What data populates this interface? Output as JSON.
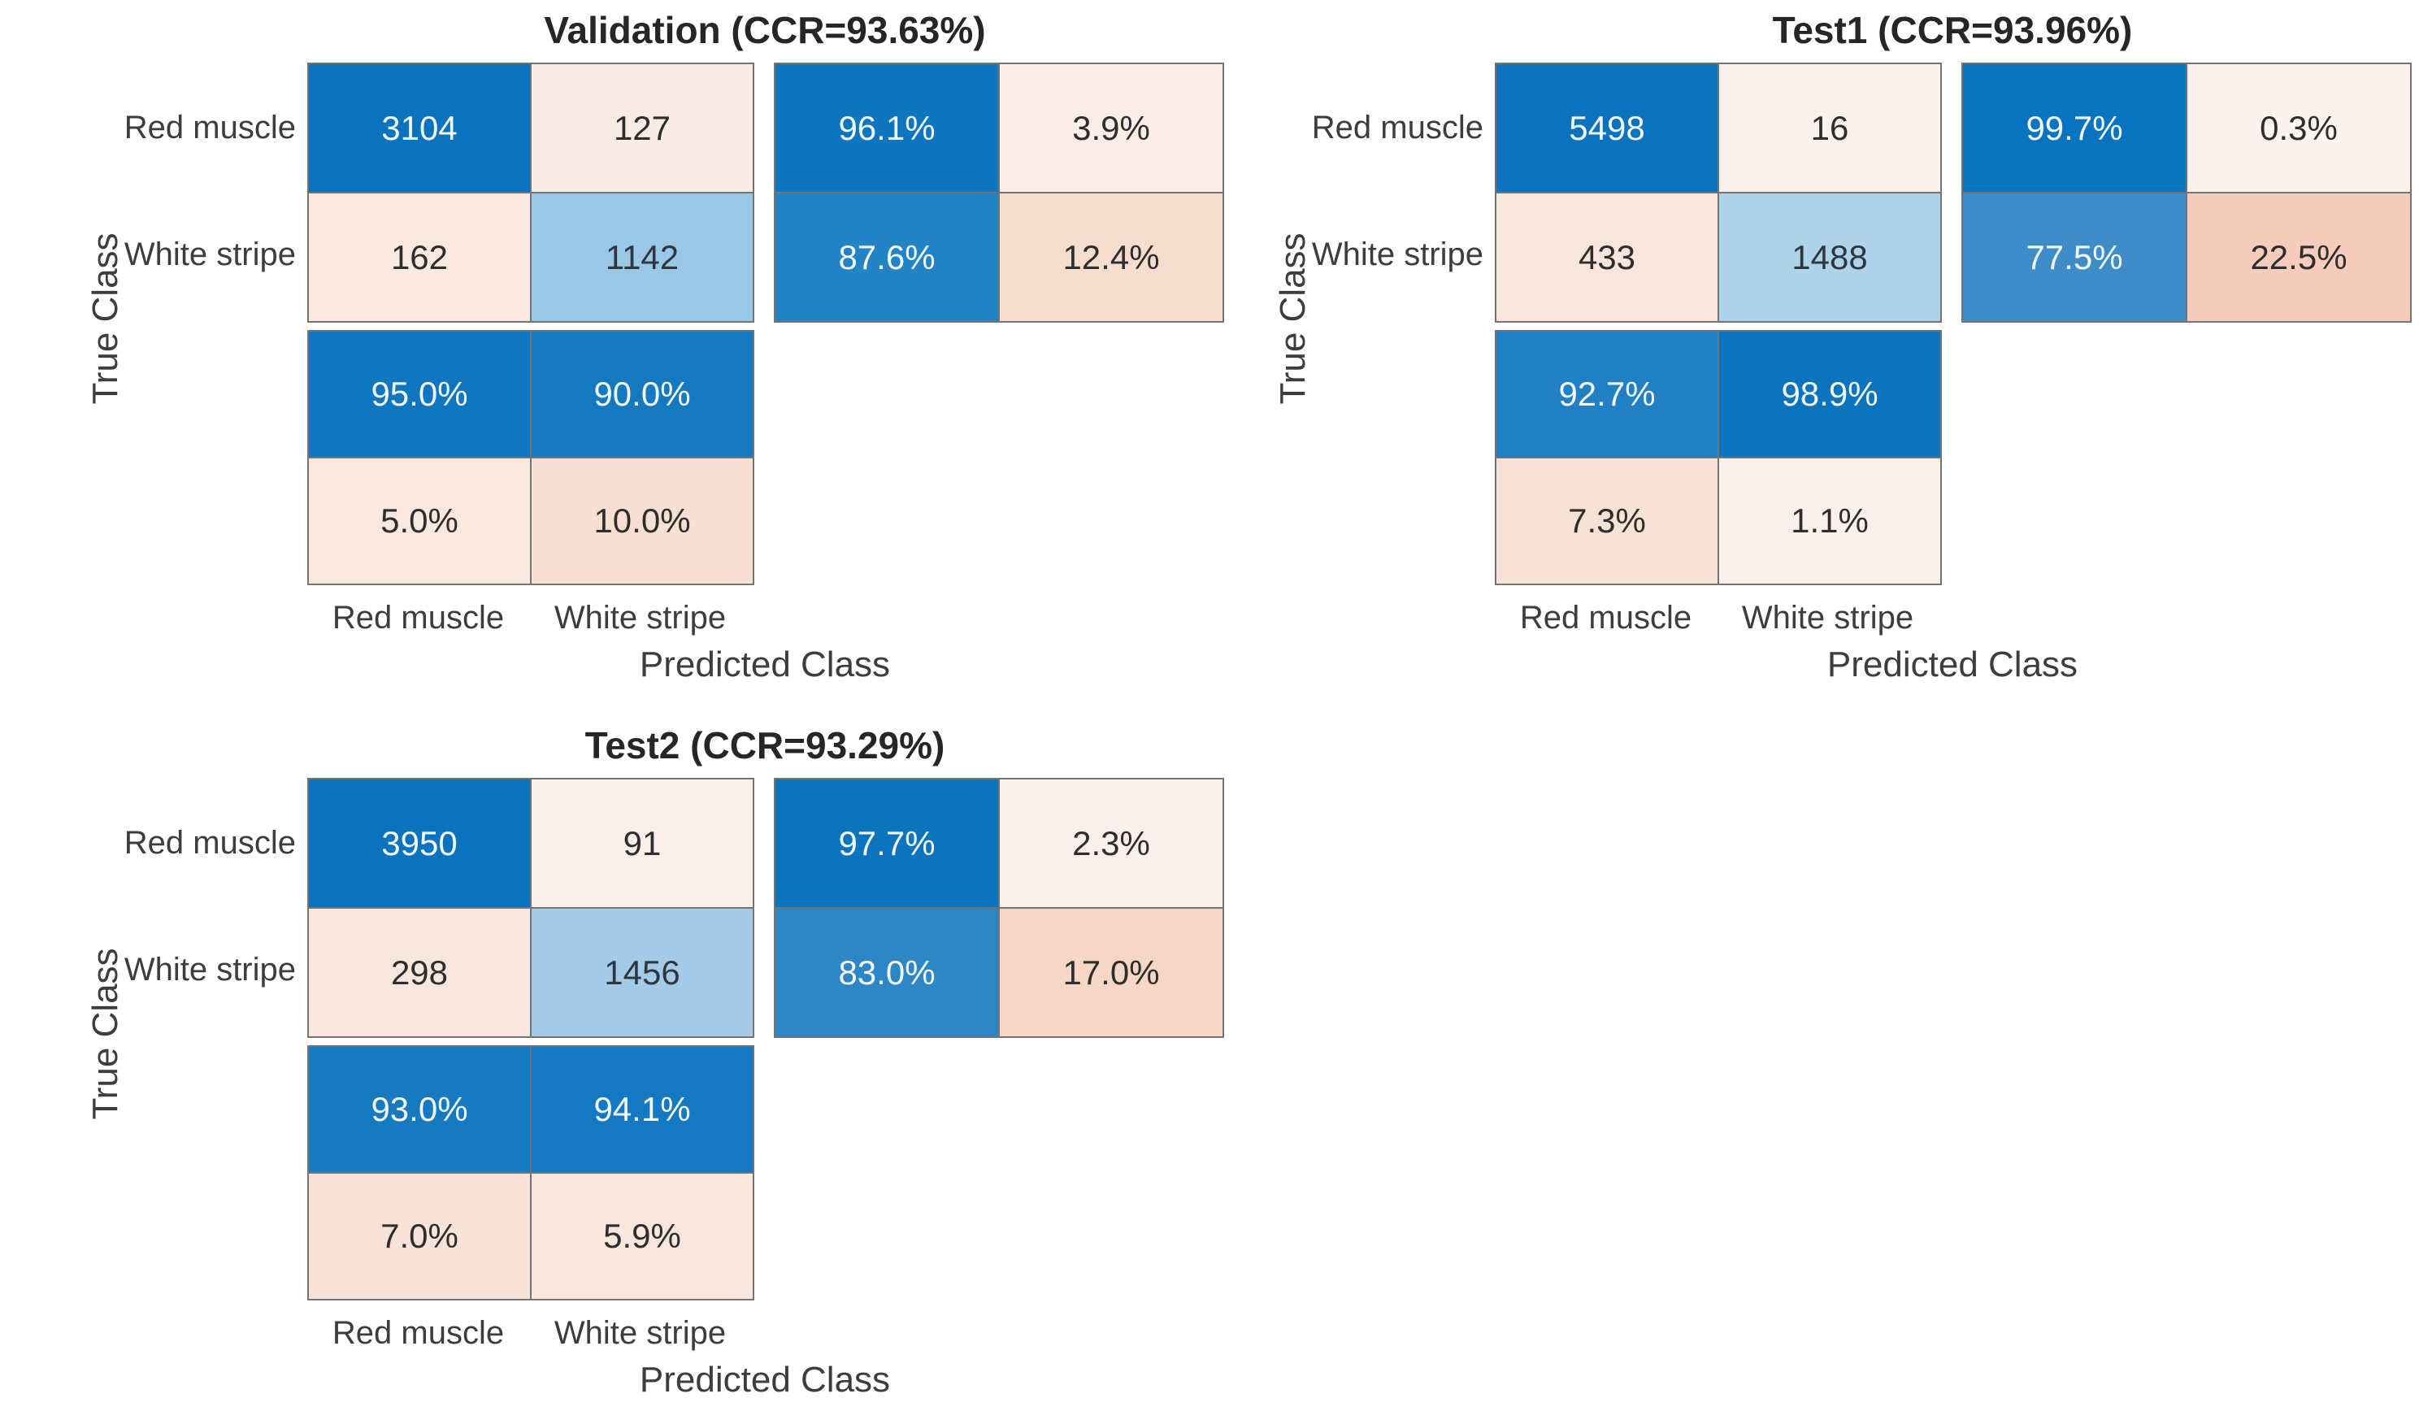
{
  "background_color": "#ffffff",
  "grid_line_color": "#747474",
  "axis_text_color": "#3d3d3d",
  "diagonal_color": "#0b73bd",
  "off_diagonal_color": "#f6cdbc",
  "chart_data": [
    {
      "type": "heatmap",
      "title": "Validation (CCR=93.63%)",
      "ccr_pct": 93.63,
      "xlabel": "Predicted Class",
      "ylabel": "True Class",
      "classes": [
        "Red muscle",
        "White stripe"
      ],
      "confusion_counts": [
        [
          3104,
          127
        ],
        [
          162,
          1142
        ]
      ],
      "row_normalized_pct": [
        [
          96.1,
          3.9
        ],
        [
          87.6,
          12.4
        ]
      ],
      "col_normalized_pct": [
        [
          95.0,
          90.0
        ],
        [
          5.0,
          10.0
        ]
      ]
    },
    {
      "type": "heatmap",
      "title": "Test1 (CCR=93.96%)",
      "ccr_pct": 93.96,
      "xlabel": "Predicted Class",
      "ylabel": "True Class",
      "classes": [
        "Red muscle",
        "White stripe"
      ],
      "confusion_counts": [
        [
          5498,
          16
        ],
        [
          433,
          1488
        ]
      ],
      "row_normalized_pct": [
        [
          99.7,
          0.3
        ],
        [
          77.5,
          22.5
        ]
      ],
      "col_normalized_pct": [
        [
          92.7,
          98.9
        ],
        [
          7.3,
          1.1
        ]
      ]
    },
    {
      "type": "heatmap",
      "title": "Test2 (CCR=93.29%)",
      "ccr_pct": 93.29,
      "xlabel": "Predicted Class",
      "ylabel": "True Class",
      "classes": [
        "Red muscle",
        "White stripe"
      ],
      "confusion_counts": [
        [
          3950,
          91
        ],
        [
          298,
          1456
        ]
      ],
      "row_normalized_pct": [
        [
          97.7,
          2.3
        ],
        [
          83.0,
          17.0
        ]
      ],
      "col_normalized_pct": [
        [
          93.0,
          94.1
        ],
        [
          7.0,
          5.9
        ]
      ]
    }
  ],
  "charts": [
    {
      "title": "Validation (CCR=93.63%)",
      "y_axis_label": "True Class",
      "x_axis_label": "Predicted Class",
      "row_labels": [
        "Red muscle",
        "White stripe"
      ],
      "col_labels": [
        "Red muscle",
        "White stripe"
      ],
      "main": {
        "cells": [
          {
            "label": "3104",
            "bg": "#0b73bd",
            "fg": "#f2f7fb"
          },
          {
            "label": "127",
            "bg": "#faece5",
            "fg": "#2e2e2e"
          },
          {
            "label": "162",
            "bg": "#f9e9e1",
            "fg": "#2e2e2e"
          },
          {
            "label": "1142",
            "bg": "#9ac7e6",
            "fg": "#2e3640"
          }
        ]
      },
      "row_summary": {
        "cells": [
          {
            "label": "96.1%",
            "bg": "#0e75be",
            "fg": "#f2f7fb"
          },
          {
            "label": "3.9%",
            "bg": "#fbeee8",
            "fg": "#2e2e2e"
          },
          {
            "label": "87.6%",
            "bg": "#2384c5",
            "fg": "#f2f7fb"
          },
          {
            "label": "12.4%",
            "bg": "#f6ddcd",
            "fg": "#2e2e2e"
          }
        ]
      },
      "col_summary": {
        "cells": [
          {
            "label": "95.0%",
            "bg": "#0f76bf",
            "fg": "#f2f7fb"
          },
          {
            "label": "90.0%",
            "bg": "#1579c0",
            "fg": "#f2f7fb"
          },
          {
            "label": "5.0%",
            "bg": "#f9e8df",
            "fg": "#2e2e2e"
          },
          {
            "label": "10.0%",
            "bg": "#f7e0d3",
            "fg": "#2e2e2e"
          }
        ]
      }
    },
    {
      "title": "Test1 (CCR=93.96%)",
      "y_axis_label": "True Class",
      "x_axis_label": "Predicted Class",
      "row_labels": [
        "Red muscle",
        "White stripe"
      ],
      "col_labels": [
        "Red muscle",
        "White stripe"
      ],
      "main": {
        "cells": [
          {
            "label": "5498",
            "bg": "#0b73bd",
            "fg": "#f2f7fb"
          },
          {
            "label": "16",
            "bg": "#fcf2ed",
            "fg": "#2e2e2e"
          },
          {
            "label": "433",
            "bg": "#f8e6dd",
            "fg": "#2e2e2e"
          },
          {
            "label": "1488",
            "bg": "#aed3e8",
            "fg": "#2e3640"
          }
        ]
      },
      "row_summary": {
        "cells": [
          {
            "label": "99.7%",
            "bg": "#0873be",
            "fg": "#f2f7fb"
          },
          {
            "label": "0.3%",
            "bg": "#fcf3ef",
            "fg": "#2e2e2e"
          },
          {
            "label": "77.5%",
            "bg": "#3e8dc9",
            "fg": "#f2f7fb"
          },
          {
            "label": "22.5%",
            "bg": "#f6cdbc",
            "fg": "#2e2e2e"
          }
        ]
      },
      "col_summary": {
        "cells": [
          {
            "label": "92.7%",
            "bg": "#2080c3",
            "fg": "#f2f7fb"
          },
          {
            "label": "98.9%",
            "bg": "#0b74bd",
            "fg": "#f2f7fb"
          },
          {
            "label": "7.3%",
            "bg": "#f7e2d6",
            "fg": "#2e2e2e"
          },
          {
            "label": "1.1%",
            "bg": "#fbf0eb",
            "fg": "#2e2e2e"
          }
        ]
      }
    },
    {
      "title": "Test2 (CCR=93.29%)",
      "y_axis_label": "True Class",
      "x_axis_label": "Predicted Class",
      "row_labels": [
        "Red muscle",
        "White stripe"
      ],
      "col_labels": [
        "Red muscle",
        "White stripe"
      ],
      "main": {
        "cells": [
          {
            "label": "3950",
            "bg": "#0b73bd",
            "fg": "#f2f7fb"
          },
          {
            "label": "91",
            "bg": "#fbefe9",
            "fg": "#2e2e2e"
          },
          {
            "label": "298",
            "bg": "#f8e7df",
            "fg": "#2e2e2e"
          },
          {
            "label": "1456",
            "bg": "#a3cbe8",
            "fg": "#2e3640"
          }
        ]
      },
      "row_summary": {
        "cells": [
          {
            "label": "97.7%",
            "bg": "#0c74bd",
            "fg": "#f2f7fb"
          },
          {
            "label": "2.3%",
            "bg": "#fbf0eb",
            "fg": "#2e2e2e"
          },
          {
            "label": "83.0%",
            "bg": "#2e87c5",
            "fg": "#f2f7fb"
          },
          {
            "label": "17.0%",
            "bg": "#f6d7c6",
            "fg": "#2e2e2e"
          }
        ]
      },
      "col_summary": {
        "cells": [
          {
            "label": "93.0%",
            "bg": "#177ac0",
            "fg": "#f2f7fb"
          },
          {
            "label": "94.1%",
            "bg": "#1479c0",
            "fg": "#f2f7fb"
          },
          {
            "label": "7.0%",
            "bg": "#f8e3d8",
            "fg": "#2e2e2e"
          },
          {
            "label": "5.9%",
            "bg": "#f9e7de",
            "fg": "#2e2e2e"
          }
        ]
      }
    }
  ]
}
